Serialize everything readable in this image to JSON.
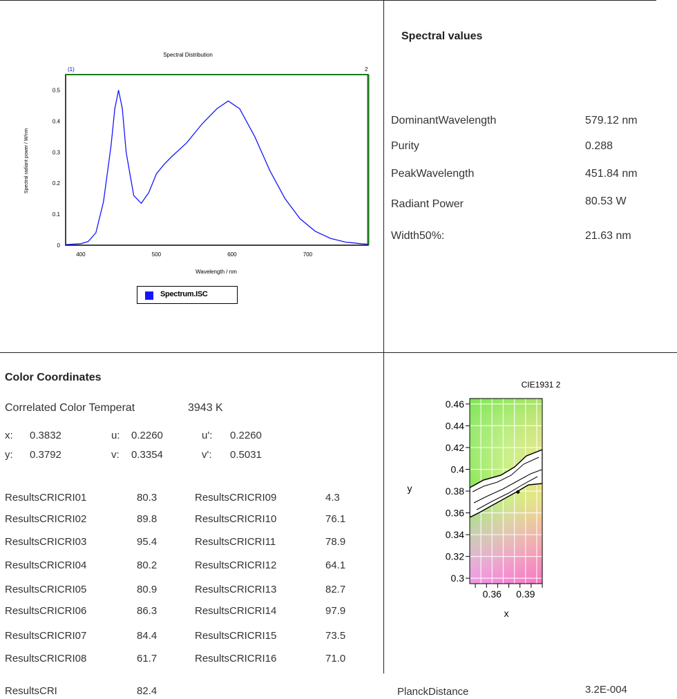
{
  "spectral": {
    "title": "Spectral values",
    "rows": [
      {
        "label": "DominantWavelength",
        "value": "579.12 nm"
      },
      {
        "label": "Purity",
        "value": "0.288"
      },
      {
        "label": "PeakWavelength",
        "value": "451.84 nm"
      },
      {
        "label": "Radiant Power",
        "value": "80.53 W"
      },
      {
        "label": "Width50%:",
        "value": "21.63 nm"
      }
    ]
  },
  "color_coords": {
    "title": "Color Coordinates",
    "cct_label": "Correlated Color Temperat",
    "cct_value": "3943 K",
    "x_label": "x:",
    "x_value": "0.3832",
    "u_label": "u:",
    "u_value": "0.2260",
    "u2_label": "u':",
    "u2_value": "0.2260",
    "y_label": "y:",
    "y_value": "0.3792",
    "v_label": "v:",
    "v_value": "0.3354",
    "v2_label": "v':",
    "v2_value": "0.5031"
  },
  "cri": {
    "left": [
      {
        "label": "ResultsCRICRI01",
        "value": "80.3"
      },
      {
        "label": "ResultsCRICRI02",
        "value": "89.8"
      },
      {
        "label": "ResultsCRICRI03",
        "value": "95.4"
      },
      {
        "label": "ResultsCRICRI04",
        "value": "80.2"
      },
      {
        "label": "ResultsCRICRI05",
        "value": "80.9"
      },
      {
        "label": "ResultsCRICRI06",
        "value": "86.3"
      },
      {
        "label": "ResultsCRICRI07",
        "value": "84.4"
      },
      {
        "label": "ResultsCRICRI08",
        "value": "61.7"
      }
    ],
    "right": [
      {
        "label": "ResultsCRICRI09",
        "value": "4.3"
      },
      {
        "label": "ResultsCRICRI10",
        "value": "76.1"
      },
      {
        "label": "ResultsCRICRI11",
        "value": "78.9"
      },
      {
        "label": "ResultsCRICRI12",
        "value": "64.1"
      },
      {
        "label": "ResultsCRICRI13",
        "value": "82.7"
      },
      {
        "label": "ResultsCRICRI14",
        "value": "97.9"
      },
      {
        "label": "ResultsCRICRI15",
        "value": "73.5"
      },
      {
        "label": "ResultsCRICRI16",
        "value": "71.0"
      }
    ],
    "overall_label": "ResultsCRI",
    "overall_value": "82.4"
  },
  "planck": {
    "label": "PlanckDistance",
    "value": "3.2E-004"
  },
  "chart_data": [
    {
      "type": "line",
      "title": "Spectral Distribution",
      "xlabel": "Wavelength / nm",
      "ylabel": "Spectral radiant power / W/nm",
      "xlim": [
        380,
        780
      ],
      "ylim": [
        0,
        0.55
      ],
      "xticks": [
        "400",
        "500",
        "600",
        "700"
      ],
      "yticks": [
        "0",
        "0.1",
        "0.2",
        "0.3",
        "0.4",
        "0.5"
      ],
      "marker_left": "(1)",
      "marker_right": "2",
      "series": [
        {
          "name": "Spectrum.ISC",
          "color": "#1515ff",
          "x": [
            380,
            400,
            410,
            420,
            430,
            440,
            445,
            450,
            455,
            460,
            470,
            480,
            490,
            500,
            510,
            520,
            540,
            560,
            580,
            595,
            610,
            630,
            650,
            670,
            690,
            710,
            730,
            750,
            770,
            780
          ],
          "y": [
            0.002,
            0.005,
            0.012,
            0.04,
            0.14,
            0.32,
            0.44,
            0.5,
            0.44,
            0.3,
            0.16,
            0.135,
            0.17,
            0.23,
            0.26,
            0.285,
            0.33,
            0.39,
            0.44,
            0.465,
            0.44,
            0.35,
            0.24,
            0.15,
            0.085,
            0.045,
            0.022,
            0.01,
            0.005,
            0.003
          ]
        }
      ]
    },
    {
      "type": "scatter",
      "title": "CIE1931 2",
      "xlabel": "x",
      "ylabel": "y",
      "xlim": [
        0.34,
        0.405
      ],
      "ylim": [
        0.295,
        0.465
      ],
      "xticks": [
        "0.36",
        "0.39"
      ],
      "yticks": [
        "0.46",
        "0.44",
        "0.42",
        "0.4",
        "0.38",
        "0.36",
        "0.34",
        "0.32",
        "0.3"
      ],
      "point": {
        "x": 0.3832,
        "y": 0.3792
      }
    }
  ]
}
